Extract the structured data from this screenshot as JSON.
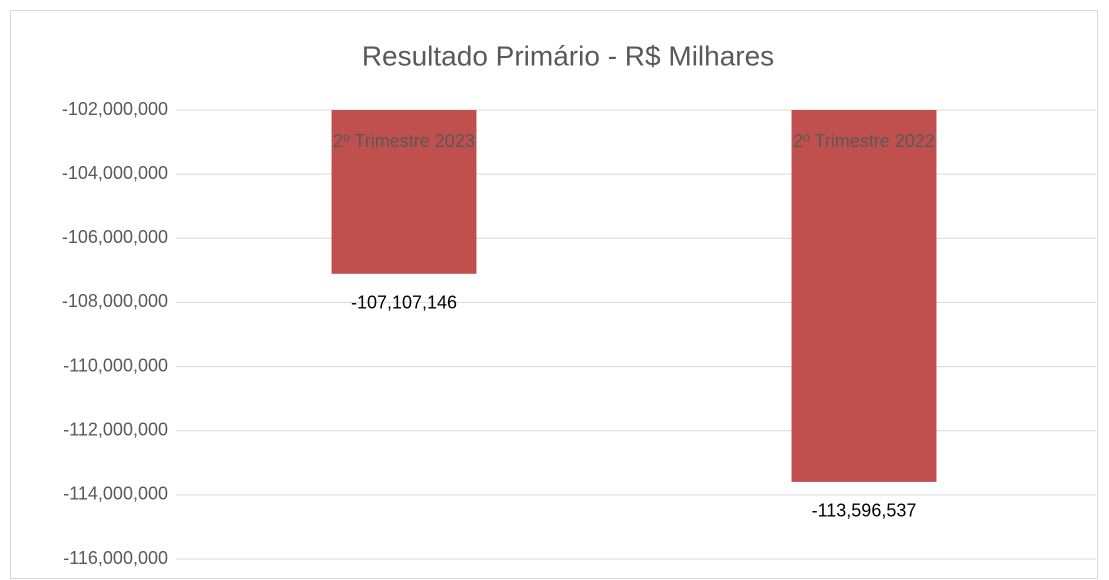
{
  "chart_data": {
    "type": "bar",
    "title": "Resultado Primário - R$ Milhares",
    "categories": [
      "2º Trimestre 2023",
      "2º Trimestre 2022"
    ],
    "values": [
      -107107146,
      -113596537
    ],
    "value_labels": [
      "-107,107,146",
      "-113,596,537"
    ],
    "color": "#c0504d",
    "ylim": [
      -116000000,
      -102000000
    ],
    "yticks": [
      {
        "value": -116000000,
        "label": "-116,000,000"
      },
      {
        "value": -114000000,
        "label": "-114,000,000"
      },
      {
        "value": -112000000,
        "label": "-112,000,000"
      },
      {
        "value": -110000000,
        "label": "-110,000,000"
      },
      {
        "value": -108000000,
        "label": "-108,000,000"
      },
      {
        "value": -106000000,
        "label": "-106,000,000"
      },
      {
        "value": -104000000,
        "label": "-104,000,000"
      },
      {
        "value": -102000000,
        "label": "-102,000,000"
      }
    ],
    "grid": true
  }
}
